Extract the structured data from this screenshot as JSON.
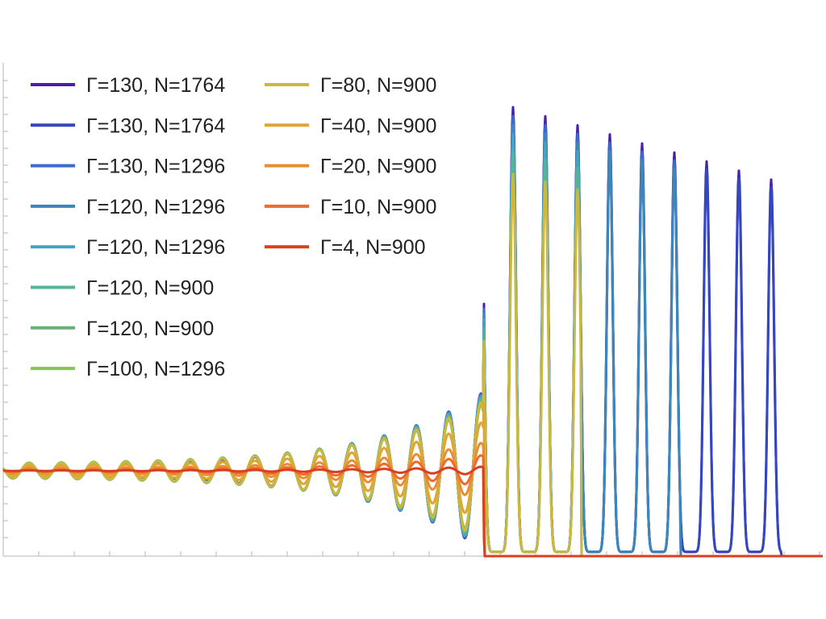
{
  "chart_data": {
    "type": "line",
    "title": "",
    "xlabel": "",
    "ylabel": "",
    "grid": false,
    "legend_position": "top-left",
    "x_range": [
      0,
      1024
    ],
    "y_range": [
      0,
      1
    ],
    "series": [
      {
        "name": "Γ=130, N=1764",
        "color": "#4a1fa8",
        "step_end": 968,
        "peak_amp": 1.0,
        "osc_amp": 0.03
      },
      {
        "name": "Γ=130, N=1764",
        "color": "#3447c2",
        "step_end": 968,
        "peak_amp": 0.98,
        "osc_amp": 0.03
      },
      {
        "name": "Γ=130, N=1296",
        "color": "#3a6bd0",
        "step_end": 843,
        "peak_amp": 0.98,
        "osc_amp": 0.035
      },
      {
        "name": "Γ=120, N=1296",
        "color": "#3e86b8",
        "step_end": 843,
        "peak_amp": 0.96,
        "osc_amp": 0.035
      },
      {
        "name": "Γ=120, N=1296",
        "color": "#46a2c2",
        "step_end": 720,
        "peak_amp": 0.94,
        "osc_amp": 0.04
      },
      {
        "name": "Γ=120, N=900",
        "color": "#56b39a",
        "step_end": 720,
        "peak_amp": 0.9,
        "osc_amp": 0.045
      },
      {
        "name": "Γ=120, N=900",
        "color": "#67b077",
        "step_end": 600,
        "peak_amp": 0.85,
        "osc_amp": 0.05
      },
      {
        "name": "Γ=100, N=1296",
        "color": "#8cc25a",
        "step_end": 600,
        "peak_amp": 0.8,
        "osc_amp": 0.05
      },
      {
        "name": "Γ=80, N=900",
        "color": "#cbb83c",
        "step_end": 720,
        "peak_amp": 0.85,
        "osc_amp": 0.045
      },
      {
        "name": "Γ=40, N=900",
        "color": "#e0a633",
        "step_end": 600,
        "peak_amp": 0.6,
        "osc_amp": 0.03
      },
      {
        "name": "Γ=20, N=900",
        "color": "#e98d34",
        "step_end": 600,
        "peak_amp": 0.35,
        "osc_amp": 0.015
      },
      {
        "name": "Γ=10, N=900",
        "color": "#ec6c2c",
        "step_end": 600,
        "peak_amp": 0.2,
        "osc_amp": 0.005
      },
      {
        "name": "Γ=4, N=900",
        "color": "#d8401f",
        "step_end": 600,
        "peak_amp": 0.05,
        "osc_amp": 0.002
      }
    ]
  }
}
